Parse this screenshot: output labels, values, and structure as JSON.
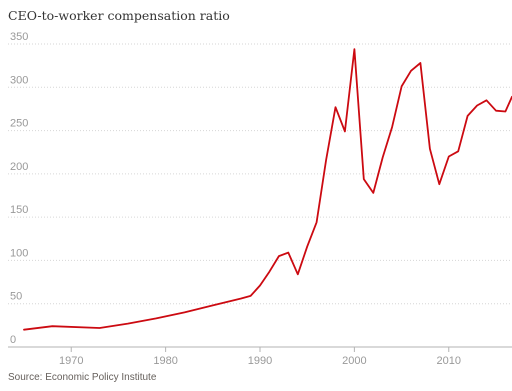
{
  "chart_data": {
    "type": "line",
    "title": "CEO-to-worker compensation ratio",
    "source": "Source: Economic Policy Institute",
    "xlabel": "",
    "ylabel": "",
    "xlim": [
      1963.3,
      2016.7
    ],
    "ylim": [
      0,
      350
    ],
    "yticks": [
      0,
      50,
      100,
      150,
      200,
      250,
      300,
      350
    ],
    "xticks": [
      1970,
      1980,
      1990,
      2000,
      2010
    ],
    "grid": "horizontal-dotted",
    "series": [
      {
        "color": "#cc0a11",
        "x": [
          1965,
          1968,
          1973,
          1976,
          1979,
          1982,
          1985,
          1988,
          1989,
          1990,
          1991,
          1992,
          1993,
          1994,
          1995,
          1996,
          1997,
          1998,
          1999,
          2000,
          2001,
          2002,
          2003,
          2004,
          2005,
          2006,
          2007,
          2008,
          2009,
          2010,
          2011,
          2012,
          2013,
          2014,
          2015,
          2016,
          2016.7
        ],
        "values": [
          20,
          24,
          22,
          27,
          33,
          40,
          48,
          56,
          59,
          71,
          87,
          105,
          109,
          84,
          116,
          144,
          216,
          277,
          249,
          344,
          194,
          178,
          219,
          254,
          301,
          319,
          328,
          229,
          188,
          220,
          226,
          267,
          279,
          285,
          273,
          272,
          289
        ]
      }
    ]
  }
}
